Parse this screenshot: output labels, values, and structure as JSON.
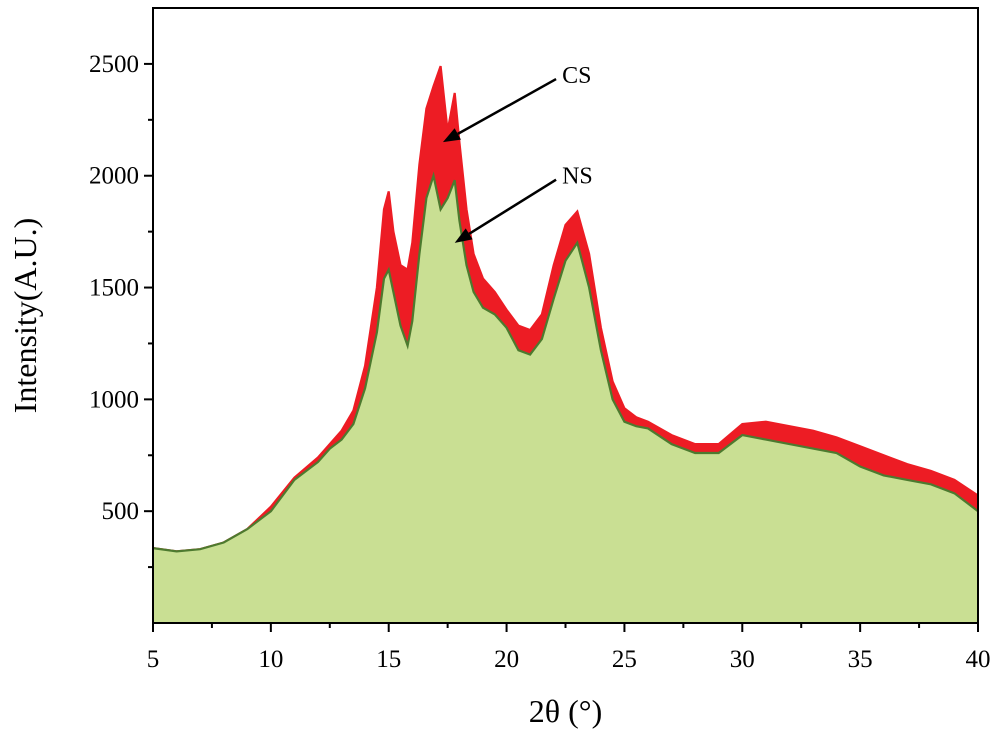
{
  "chart_data": {
    "type": "area",
    "xlabel": "2θ (°)",
    "ylabel": "Intensity(A.U.)",
    "xlim": [
      5,
      40
    ],
    "ylim": [
      0,
      2750
    ],
    "x_ticks": [
      5,
      10,
      15,
      20,
      25,
      30,
      35,
      40
    ],
    "y_ticks": [
      500,
      1000,
      1500,
      2000,
      2500
    ],
    "grid": false,
    "legend": "none",
    "series": [
      {
        "name": "CS",
        "color": "#ed1c24",
        "x": [
          5,
          6,
          7,
          8,
          9,
          10,
          11,
          12,
          12.5,
          13,
          13.5,
          14,
          14.5,
          14.8,
          15,
          15.2,
          15.5,
          15.8,
          16,
          16.3,
          16.6,
          16.9,
          17.2,
          17.5,
          17.8,
          18,
          18.3,
          18.6,
          19,
          19.5,
          20,
          20.5,
          21,
          21.5,
          22,
          22.5,
          23,
          23.5,
          24,
          24.5,
          25,
          25.5,
          26,
          27,
          28,
          29,
          30,
          31,
          32,
          33,
          34,
          35,
          36,
          37,
          38,
          39,
          40
        ],
        "y": [
          335,
          320,
          330,
          360,
          420,
          520,
          650,
          740,
          800,
          860,
          950,
          1150,
          1500,
          1850,
          1930,
          1750,
          1600,
          1580,
          1700,
          2050,
          2300,
          2400,
          2490,
          2200,
          2370,
          2150,
          1850,
          1650,
          1540,
          1480,
          1400,
          1330,
          1310,
          1380,
          1600,
          1780,
          1840,
          1650,
          1320,
          1080,
          960,
          920,
          900,
          840,
          800,
          800,
          890,
          900,
          880,
          860,
          830,
          790,
          750,
          710,
          680,
          640,
          570
        ]
      },
      {
        "name": "NS",
        "color": "#c9df93",
        "line_color": "#4d7a2f",
        "x": [
          5,
          6,
          7,
          8,
          9,
          10,
          11,
          12,
          12.5,
          13,
          13.5,
          14,
          14.5,
          14.8,
          15,
          15.2,
          15.5,
          15.8,
          16,
          16.3,
          16.6,
          16.9,
          17.2,
          17.5,
          17.8,
          18,
          18.3,
          18.6,
          19,
          19.5,
          20,
          20.5,
          21,
          21.5,
          22,
          22.5,
          23,
          23.5,
          24,
          24.5,
          25,
          25.5,
          26,
          27,
          28,
          29,
          30,
          31,
          32,
          33,
          34,
          35,
          36,
          37,
          38,
          39,
          40
        ],
        "y": [
          335,
          320,
          330,
          360,
          420,
          500,
          640,
          720,
          780,
          820,
          890,
          1050,
          1300,
          1540,
          1580,
          1480,
          1330,
          1240,
          1350,
          1650,
          1900,
          2000,
          1850,
          1900,
          1980,
          1800,
          1600,
          1480,
          1410,
          1380,
          1320,
          1220,
          1200,
          1270,
          1450,
          1620,
          1700,
          1500,
          1220,
          1000,
          900,
          880,
          870,
          800,
          760,
          760,
          840,
          820,
          800,
          780,
          760,
          700,
          660,
          640,
          620,
          580,
          500
        ]
      }
    ],
    "annotations": [
      {
        "text": "CS",
        "x_text": 22.1,
        "y_text": 2450,
        "x_arrow": 17.3,
        "y_arrow": 2150
      },
      {
        "text": "NS",
        "x_text": 22.1,
        "y_text": 2000,
        "x_arrow": 17.8,
        "y_arrow": 1700
      }
    ]
  }
}
